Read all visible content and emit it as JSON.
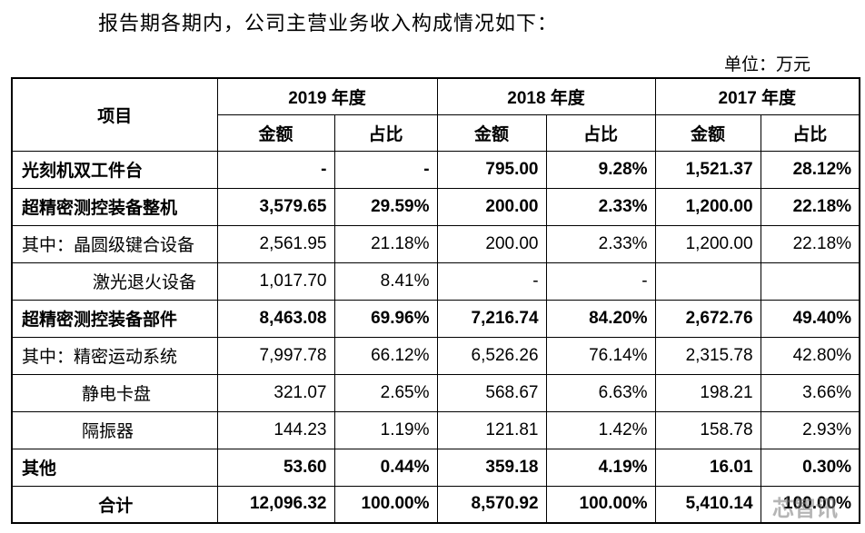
{
  "intro": "报告期各期内，公司主营业务收入构成情况如下：",
  "unit": "单位：万元",
  "table": {
    "item_header": "项目",
    "years": [
      "2019 年度",
      "2018 年度",
      "2017 年度"
    ],
    "sub_headers": [
      "金额",
      "占比"
    ],
    "rows": [
      [
        "光刻机双工件台",
        "-",
        "-",
        "795.00",
        "9.28%",
        "1,521.37",
        "28.12%"
      ],
      [
        "超精密测控装备整机",
        "3,579.65",
        "29.59%",
        "200.00",
        "2.33%",
        "1,200.00",
        "22.18%"
      ],
      [
        "其中：晶圆级键合设备",
        "2,561.95",
        "21.18%",
        "200.00",
        "2.33%",
        "1,200.00",
        "22.18%"
      ],
      [
        "激光退火设备",
        "1,017.70",
        "8.41%",
        "-",
        "-",
        null,
        null
      ],
      [
        "超精密测控装备部件",
        "8,463.08",
        "69.96%",
        "7,216.74",
        "84.20%",
        "2,672.76",
        "49.40%"
      ],
      [
        "其中：精密运动系统",
        "7,997.78",
        "66.12%",
        "6,526.26",
        "76.14%",
        "2,315.78",
        "42.80%"
      ],
      [
        "静电卡盘",
        "321.07",
        "2.65%",
        "568.67",
        "6.63%",
        "198.21",
        "3.66%"
      ],
      [
        "隔振器",
        "144.23",
        "1.19%",
        "121.81",
        "1.42%",
        "158.78",
        "2.93%"
      ],
      [
        "其他",
        "53.60",
        "0.44%",
        "359.18",
        "4.19%",
        "16.01",
        "0.30%"
      ],
      [
        "合计",
        "12,096.32",
        "100.00%",
        "8,570.92",
        "100.00%",
        "5,410.14",
        "100.00%"
      ]
    ]
  },
  "watermark": "芯智讯"
}
